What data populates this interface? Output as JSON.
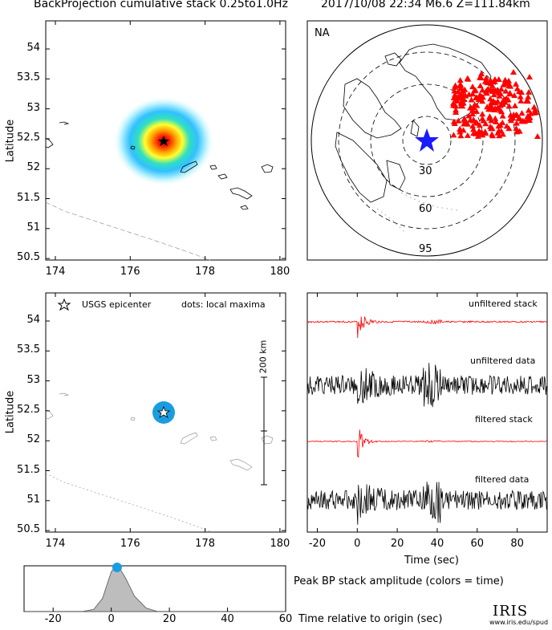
{
  "header": {
    "left_title": "BackProjection cumulative stack 0.25to1.0Hz",
    "right_title": "2017/10/08 22:34   M6.6   Z=111.84km"
  },
  "map_top": {
    "ylabel": "Latitude",
    "yticks": [
      "54",
      "53.5",
      "53",
      "52.5",
      "52",
      "51.5",
      "51",
      "50.5"
    ],
    "xticks": [
      "174",
      "176",
      "178",
      "180"
    ]
  },
  "globe": {
    "region_label": "NA",
    "ring_labels": [
      "30",
      "60",
      "95"
    ],
    "star_color": "#1a1aff",
    "station_color": "#ff0000"
  },
  "map_bottom": {
    "ylabel": "Latitude",
    "legend_epicenter": "USGS epicenter",
    "legend_dots": "dots: local maxima",
    "scale_label": "200 km",
    "yticks": [
      "54",
      "53.5",
      "53",
      "52.5",
      "52",
      "51.5",
      "51",
      "50.5"
    ],
    "xticks": [
      "174",
      "176",
      "178",
      "180"
    ],
    "maxima_color": "#1a9de0"
  },
  "traces": {
    "labels": [
      "unfiltered stack",
      "unfiltered data",
      "filtered stack",
      "filtered data"
    ],
    "xlabel": "Time (sec)",
    "xticks": [
      "-20",
      "0",
      "20",
      "40",
      "60",
      "80"
    ],
    "stack_color": "#ff0000"
  },
  "chart_data": {
    "type": "area",
    "title": "Peak BP stack amplitude (colors = time)",
    "xlabel": "Time relative to origin (sec)",
    "x": [
      -30,
      -10,
      -6,
      -3,
      -1,
      0,
      1,
      2,
      3,
      5,
      8,
      12,
      16,
      60
    ],
    "values": [
      0,
      0,
      0.05,
      0.3,
      0.7,
      0.9,
      0.98,
      1.0,
      0.97,
      0.75,
      0.35,
      0.08,
      0,
      0
    ],
    "xlim": [
      -30,
      60
    ],
    "xticks": [
      "-20",
      "0",
      "20",
      "40",
      "60"
    ],
    "peak_time": 2,
    "peak_color": "#1a9de0"
  },
  "footer": {
    "logo": "IRIS",
    "url": "www.iris.edu/spud"
  }
}
